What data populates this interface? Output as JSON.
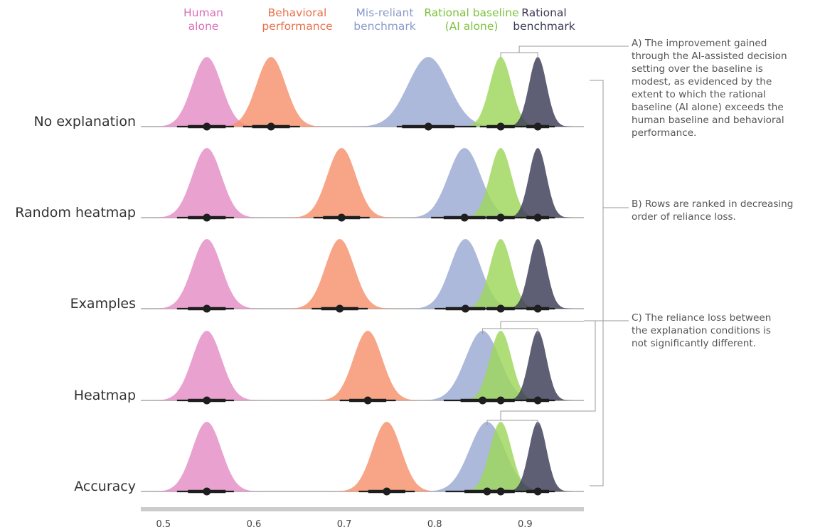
{
  "chart_data": {
    "type": "ridgeline",
    "xlim": [
      0.475,
      0.965
    ],
    "xticks": [
      0.5,
      0.6,
      0.7,
      0.8,
      0.9
    ],
    "xtick_labels": [
      "0.5",
      "0.6",
      "0.7",
      "0.8",
      "0.9"
    ],
    "series": [
      {
        "key": "human",
        "name": "Human alone",
        "legend_lines": [
          "Human",
          "alone"
        ],
        "color": "#e48dc6"
      },
      {
        "key": "behavioral",
        "name": "Behavioral performance",
        "legend_lines": [
          "Behavioral",
          "performance"
        ],
        "color": "#f7906b"
      },
      {
        "key": "misreliant",
        "name": "Mis-reliant benchmark",
        "legend_lines": [
          "Mis-reliant",
          "benchmark"
        ],
        "color": "#9aaad3"
      },
      {
        "key": "rational_baseline",
        "name": "Rational baseline (AI alone)",
        "legend_lines": [
          "Rational baseline",
          "(AI alone)"
        ],
        "color": "#9ed75c"
      },
      {
        "key": "rational_benchmark",
        "name": "Rational benchmark",
        "legend_lines": [
          "Rational",
          "benchmark"
        ],
        "color": "#3a3a55"
      }
    ],
    "legend_text_colors": {
      "human": "#d96fb8",
      "behavioral": "#e8714a",
      "misreliant": "#8a9acb",
      "rational_baseline": "#7cc23e",
      "rational_benchmark": "#3a3a55"
    },
    "rows": [
      {
        "label": "No explanation",
        "distributions": {
          "human": {
            "mean": 0.548,
            "ci": [
              0.515,
              0.578
            ]
          },
          "behavioral": {
            "mean": 0.619,
            "ci": [
              0.588,
              0.651
            ]
          },
          "misreliant": {
            "mean": 0.793,
            "ci": [
              0.758,
              0.846
            ]
          },
          "rational_baseline": {
            "mean": 0.873,
            "ci": [
              0.85,
              0.897
            ]
          },
          "rational_benchmark": {
            "mean": 0.914,
            "ci": [
              0.895,
              0.933
            ]
          }
        }
      },
      {
        "label": "Random heatmap",
        "distributions": {
          "human": {
            "mean": 0.548,
            "ci": [
              0.515,
              0.578
            ]
          },
          "behavioral": {
            "mean": 0.697,
            "ci": [
              0.666,
              0.728
            ]
          },
          "misreliant": {
            "mean": 0.833,
            "ci": [
              0.796,
              0.866
            ]
          },
          "rational_baseline": {
            "mean": 0.873,
            "ci": [
              0.85,
              0.897
            ]
          },
          "rational_benchmark": {
            "mean": 0.914,
            "ci": [
              0.895,
              0.933
            ]
          }
        }
      },
      {
        "label": "Examples",
        "distributions": {
          "human": {
            "mean": 0.548,
            "ci": [
              0.515,
              0.578
            ]
          },
          "behavioral": {
            "mean": 0.695,
            "ci": [
              0.664,
              0.726
            ]
          },
          "misreliant": {
            "mean": 0.834,
            "ci": [
              0.8,
              0.866
            ]
          },
          "rational_baseline": {
            "mean": 0.873,
            "ci": [
              0.85,
              0.897
            ]
          },
          "rational_benchmark": {
            "mean": 0.914,
            "ci": [
              0.895,
              0.933
            ]
          }
        }
      },
      {
        "label": "Heatmap",
        "distributions": {
          "human": {
            "mean": 0.548,
            "ci": [
              0.515,
              0.578
            ]
          },
          "behavioral": {
            "mean": 0.726,
            "ci": [
              0.695,
              0.757
            ]
          },
          "misreliant": {
            "mean": 0.853,
            "ci": [
              0.81,
              0.884
            ]
          },
          "rational_baseline": {
            "mean": 0.873,
            "ci": [
              0.85,
              0.897
            ]
          },
          "rational_benchmark": {
            "mean": 0.914,
            "ci": [
              0.895,
              0.933
            ]
          }
        }
      },
      {
        "label": "Accuracy",
        "distributions": {
          "human": {
            "mean": 0.548,
            "ci": [
              0.515,
              0.578
            ]
          },
          "behavioral": {
            "mean": 0.747,
            "ci": [
              0.716,
              0.778
            ]
          },
          "misreliant": {
            "mean": 0.858,
            "ci": [
              0.812,
              0.888
            ]
          },
          "rational_baseline": {
            "mean": 0.873,
            "ci": [
              0.85,
              0.897
            ]
          },
          "rational_benchmark": {
            "mean": 0.914,
            "ci": [
              0.895,
              0.933
            ]
          }
        }
      }
    ]
  },
  "annotations": {
    "a": "A) The improvement gained\nthrough the AI-assisted decision\nsetting over the baseline is\nmodest, as evidenced by the\nextent to which the rational\nbaseline (AI alone) exceeds the\nhuman baseline and behavioral\nperformance.",
    "b": "B) Rows are ranked in decreasing\norder of reliance loss.",
    "c": "C) The reliance loss between\nthe explanation conditions is\nnot significantly different."
  },
  "colors": {
    "baseline": "#bdbdbd",
    "axis_bar": "#cccccc",
    "bracket": "#999999",
    "interval": "#1e1e1e"
  }
}
